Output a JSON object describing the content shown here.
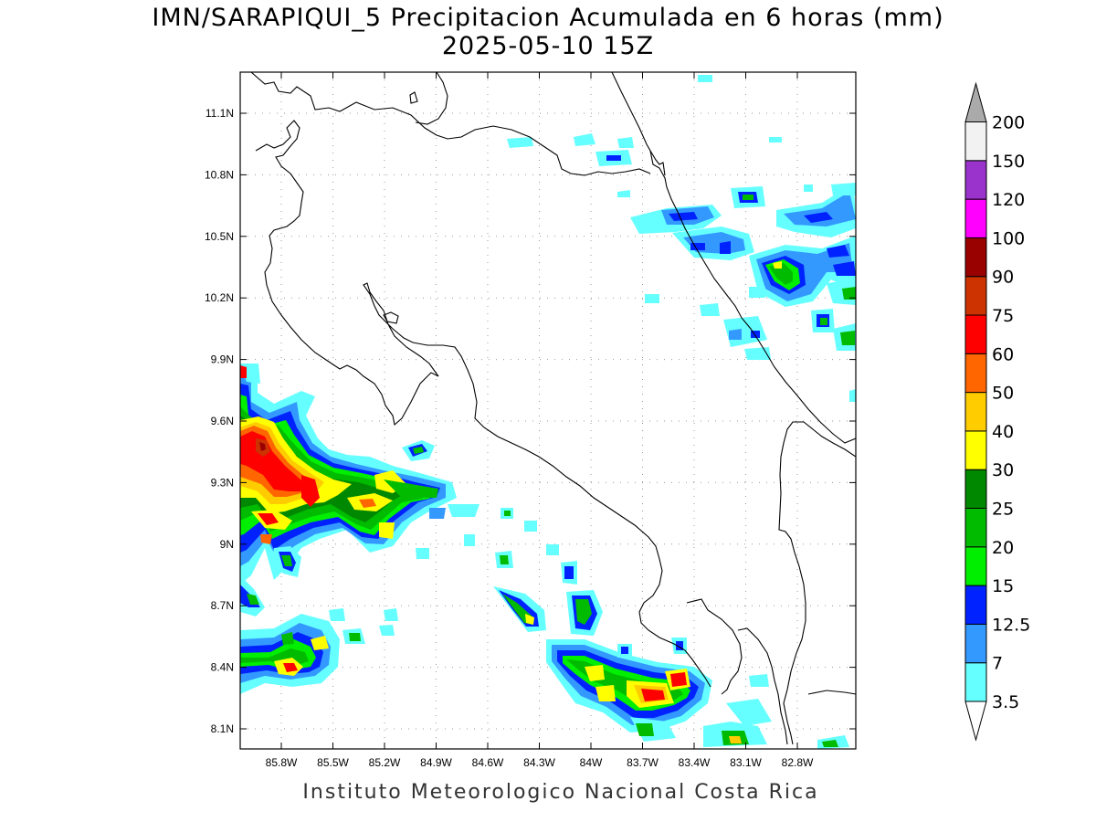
{
  "header": {
    "title": "IMN/SARAPIQUI_5 Precipitacion Acumulada en 6 horas (mm)",
    "subtitle": "2025-05-10 15Z"
  },
  "footer": {
    "credit": "Instituto Meteorologico Nacional Costa Rica"
  },
  "map": {
    "lat_ticks": [
      "11.1N",
      "10.8N",
      "10.5N",
      "10.2N",
      "9.9N",
      "9.6N",
      "9.3N",
      "9N",
      "8.7N",
      "8.4N",
      "8.1N"
    ],
    "lon_ticks": [
      "85.8W",
      "85.5W",
      "85.2W",
      "84.9W",
      "84.6W",
      "84.3W",
      "84W",
      "83.7W",
      "83.4W",
      "83.1W",
      "82.8W"
    ],
    "gridlines": "dotted",
    "coastline_color": "#000000"
  },
  "colorbar": {
    "levels": [
      "3.5",
      "7",
      "12.5",
      "15",
      "20",
      "25",
      "30",
      "40",
      "50",
      "60",
      "75",
      "90",
      "100",
      "120",
      "150",
      "200"
    ],
    "colors": [
      "#66ffff",
      "#3399ff",
      "#0022ff",
      "#00ee00",
      "#00bb00",
      "#008800",
      "#ffff00",
      "#ffcc00",
      "#ff6600",
      "#ff0000",
      "#cc3300",
      "#990000",
      "#ff00ff",
      "#9933cc",
      "#f2f2f2",
      "#aaaaaa"
    ],
    "under_color": "#ffffff",
    "over_color": "#aaaaaa"
  }
}
